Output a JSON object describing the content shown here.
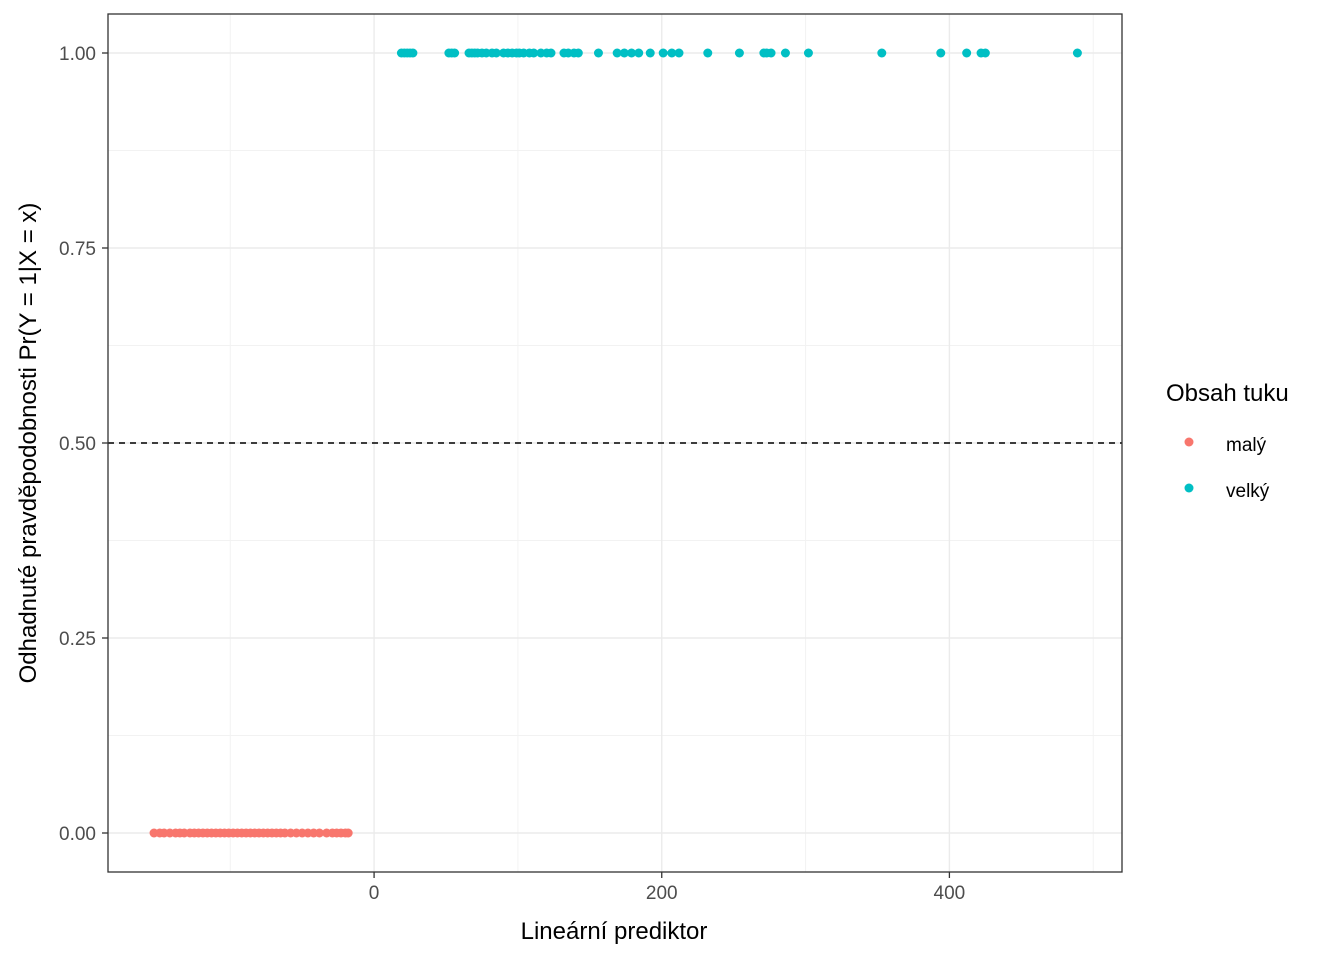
{
  "chart_data": {
    "type": "scatter",
    "xlabel": "Lineární prediktor",
    "ylabel": "Odhadnuté pravděpodobnosti Pr(Y = 1|X = x)",
    "xlim": [
      -185,
      520
    ],
    "ylim": [
      -0.05,
      1.05
    ],
    "x_ticks": [
      0,
      200,
      400
    ],
    "y_ticks": [
      0.0,
      0.25,
      0.5,
      0.75,
      1.0
    ],
    "x_tick_labels": [
      "0",
      "200",
      "400"
    ],
    "y_tick_labels": [
      "0.00",
      "0.25",
      "0.50",
      "0.75",
      "1.00"
    ],
    "threshold": 0.5,
    "grid": true,
    "legend": {
      "title": "Obsah tuku",
      "position": "right",
      "entries": [
        {
          "label": "malý",
          "color": "#F8766D"
        },
        {
          "label": "velký",
          "color": "#00BFC4"
        }
      ]
    },
    "series": [
      {
        "name": "malý",
        "color": "#F8766D",
        "y": 0,
        "x": [
          -153,
          -149,
          -146,
          -142,
          -138,
          -135,
          -132,
          -128,
          -125,
          -122,
          -119,
          -116,
          -113,
          -110,
          -107,
          -104,
          -101,
          -98,
          -95,
          -92,
          -89,
          -86,
          -83,
          -80,
          -77,
          -74,
          -71,
          -68,
          -65,
          -62,
          -58,
          -54,
          -50,
          -46,
          -42,
          -38,
          -33,
          -29,
          -26,
          -23,
          -20,
          -18
        ]
      },
      {
        "name": "velký",
        "color": "#00BFC4",
        "y": 1,
        "x": [
          19,
          21,
          23,
          25,
          27,
          52,
          54,
          56,
          66,
          68,
          70,
          72,
          75,
          78,
          82,
          85,
          90,
          93,
          96,
          99,
          101,
          104,
          108,
          111,
          116,
          120,
          123,
          132,
          135,
          139,
          142,
          156,
          169,
          174,
          179,
          184,
          192,
          201,
          207,
          212,
          232,
          254,
          271,
          273,
          276,
          286,
          302,
          353,
          394,
          412,
          422,
          425,
          489
        ]
      }
    ]
  }
}
